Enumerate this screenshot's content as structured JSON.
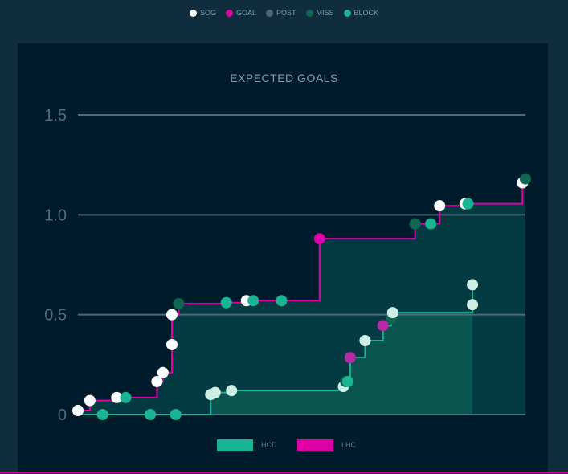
{
  "legend": [
    {
      "label": "SOG",
      "color": "#ffffff"
    },
    {
      "label": "GOAL",
      "color": "#e000a8"
    },
    {
      "label": "POST",
      "color": "#4e6778"
    },
    {
      "label": "MISS",
      "color": "#0f6653"
    },
    {
      "label": "BLOCK",
      "color": "#1ab394"
    }
  ],
  "chart_data": {
    "type": "line",
    "title": "EXPECTED GOALS",
    "ylim": [
      0,
      1.5
    ],
    "yticks": [
      "0",
      "0.5",
      "1.0",
      "1.5"
    ],
    "xlim": [
      0,
      60
    ],
    "grid": true,
    "legend_placement": "bottom",
    "series": [
      {
        "name": "HCD",
        "color": "#1ab394",
        "fill": "#0a5550",
        "sog_color": "#cdeee4",
        "goal_color": "#b829a6",
        "shots": [
          {
            "t": 3.3,
            "xg": 0,
            "type": "BLOCK"
          },
          {
            "t": 9.7,
            "xg": 0,
            "type": "BLOCK"
          },
          {
            "t": 13.1,
            "xg": 0,
            "type": "BLOCK"
          },
          {
            "t": 17.8,
            "xg": 0.1,
            "type": "SOG"
          },
          {
            "t": 18.4,
            "xg": 0.11,
            "type": "SOG"
          },
          {
            "t": 20.6,
            "xg": 0.12,
            "type": "SOG"
          },
          {
            "t": 35.6,
            "xg": 0.14,
            "type": "SOG"
          },
          {
            "t": 35.9,
            "xg": 0.165,
            "type": "MISS"
          },
          {
            "t": 36.2,
            "xg": 0.165,
            "type": "BLOCK"
          },
          {
            "t": 36.5,
            "xg": 0.285,
            "type": "GOAL"
          },
          {
            "t": 38.5,
            "xg": 0.37,
            "type": "SOG"
          },
          {
            "t": 40.9,
            "xg": 0.445,
            "type": "GOAL"
          },
          {
            "t": 42.0,
            "xg": 0.48,
            "type": "MISS"
          },
          {
            "t": 42.2,
            "xg": 0.51,
            "type": "SOG"
          },
          {
            "t": 52.9,
            "xg": 0.55,
            "type": "SOG"
          },
          {
            "t": 52.9,
            "xg": 0.65,
            "type": "SOG"
          }
        ]
      },
      {
        "name": "LHC",
        "color": "#e000a8",
        "fill": "#043a42",
        "sog_color": "#ffffff",
        "goal_color": "#e000a8",
        "shots": [
          {
            "t": 0,
            "xg": 0.02,
            "type": "SOG"
          },
          {
            "t": 1.6,
            "xg": 0.07,
            "type": "SOG"
          },
          {
            "t": 5.2,
            "xg": 0.085,
            "type": "SOG"
          },
          {
            "t": 6.4,
            "xg": 0.085,
            "type": "BLOCK"
          },
          {
            "t": 10.6,
            "xg": 0.165,
            "type": "SOG"
          },
          {
            "t": 11.4,
            "xg": 0.21,
            "type": "SOG"
          },
          {
            "t": 12.6,
            "xg": 0.35,
            "type": "SOG"
          },
          {
            "t": 12.6,
            "xg": 0.5,
            "type": "SOG"
          },
          {
            "t": 13.5,
            "xg": 0.555,
            "type": "MISS"
          },
          {
            "t": 19.9,
            "xg": 0.56,
            "type": "BLOCK"
          },
          {
            "t": 22.6,
            "xg": 0.57,
            "type": "SOG"
          },
          {
            "t": 23.5,
            "xg": 0.57,
            "type": "BLOCK"
          },
          {
            "t": 27.3,
            "xg": 0.57,
            "type": "BLOCK"
          },
          {
            "t": 32.4,
            "xg": 0.88,
            "type": "GOAL"
          },
          {
            "t": 45.2,
            "xg": 0.955,
            "type": "MISS"
          },
          {
            "t": 47.3,
            "xg": 0.955,
            "type": "BLOCK"
          },
          {
            "t": 48.5,
            "xg": 1.045,
            "type": "SOG"
          },
          {
            "t": 51.9,
            "xg": 1.055,
            "type": "SOG"
          },
          {
            "t": 52.3,
            "xg": 1.055,
            "type": "BLOCK"
          },
          {
            "t": 59.6,
            "xg": 1.16,
            "type": "SOG"
          },
          {
            "t": 60,
            "xg": 1.18,
            "type": "MISS"
          }
        ]
      }
    ]
  }
}
